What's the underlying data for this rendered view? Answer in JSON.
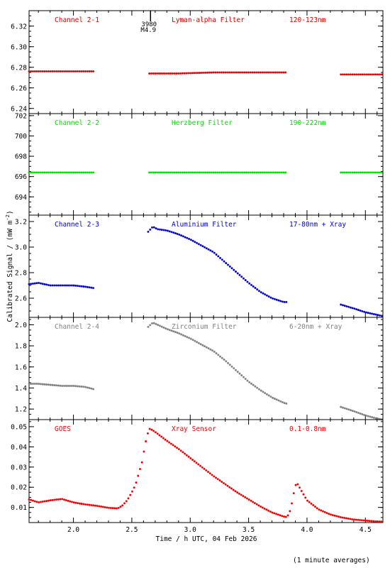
{
  "chart_data": {
    "type": "scatter",
    "xlabel": "Time / h UTC, 04 Feb 2026",
    "ylabel": "Calibrated Signal / (mW m",
    "ylabel_exp": "-2",
    "ylabel_end": ")",
    "footnote": "(1 minute averages)",
    "xlim": [
      1.62,
      4.65
    ],
    "xticks": [
      "2.0",
      "2.5",
      "3.0",
      "3.5",
      "4.0",
      "4.5"
    ],
    "flare": {
      "x": 2.66,
      "label_top": "3980",
      "label_bottom": "M4.9"
    },
    "panels": [
      {
        "labels": [
          "Channel 2-1",
          "Lyman-alpha Filter",
          "120-123nm"
        ],
        "color": "#dd0000",
        "ylim": [
          6.235,
          6.335
        ],
        "yticks": [
          "6.24",
          "6.26",
          "6.28",
          "6.30",
          "6.32"
        ],
        "segments": [
          {
            "x": [
              1.62,
              2.17
            ],
            "y": [
              6.276,
              6.276
            ]
          },
          {
            "x": [
              2.65,
              2.9,
              3.2,
              3.5,
              3.83
            ],
            "y": [
              6.274,
              6.274,
              6.275,
              6.275,
              6.275
            ]
          },
          {
            "x": [
              4.29,
              4.65
            ],
            "y": [
              6.273,
              6.273
            ]
          }
        ]
      },
      {
        "labels": [
          "Channel 2-2",
          "Herzberg Filter",
          "190-222nm"
        ],
        "color": "#00e000",
        "ylim": [
          692.2,
          702.2
        ],
        "yticks": [
          "694",
          "696",
          "698",
          "700",
          "702"
        ],
        "segments": [
          {
            "x": [
              1.62,
              2.17
            ],
            "y": [
              696.4,
              696.4
            ]
          },
          {
            "x": [
              2.65,
              3.83
            ],
            "y": [
              696.4,
              696.4
            ]
          },
          {
            "x": [
              4.29,
              4.65
            ],
            "y": [
              696.4,
              696.4
            ]
          }
        ]
      },
      {
        "labels": [
          "Channel 2-3",
          "Aluminium Filter",
          "17-80nm + Xray"
        ],
        "color": "#0000cc",
        "ylim": [
          2.45,
          3.25
        ],
        "yticks": [
          "2.6",
          "2.8",
          "3.0",
          "3.2"
        ],
        "segments": [
          {
            "x": [
              1.62,
              1.7,
              1.8,
              1.9,
              2.0,
              2.1,
              2.17
            ],
            "y": [
              2.71,
              2.72,
              2.7,
              2.7,
              2.7,
              2.69,
              2.68
            ]
          },
          {
            "x": [
              2.64,
              2.68,
              2.72,
              2.8,
              2.9,
              3.0,
              3.1,
              3.2,
              3.3,
              3.4,
              3.5,
              3.6,
              3.7,
              3.8,
              3.83
            ],
            "y": [
              3.12,
              3.16,
              3.14,
              3.13,
              3.1,
              3.06,
              3.01,
              2.96,
              2.88,
              2.8,
              2.72,
              2.65,
              2.6,
              2.57,
              2.57
            ]
          },
          {
            "x": [
              4.29,
              4.4,
              4.5,
              4.6,
              4.65
            ],
            "y": [
              2.55,
              2.52,
              2.49,
              2.47,
              2.46
            ]
          }
        ]
      },
      {
        "labels": [
          "Channel 2-4",
          "Zirconium Filter",
          "6-20nm + Xray"
        ],
        "color": "#808080",
        "ylim": [
          1.1,
          2.07
        ],
        "yticks": [
          "1.2",
          "1.4",
          "1.6",
          "1.8",
          "2.0"
        ],
        "segments": [
          {
            "x": [
              1.62,
              1.7,
              1.8,
              1.9,
              2.0,
              2.1,
              2.17
            ],
            "y": [
              1.44,
              1.44,
              1.43,
              1.42,
              1.42,
              1.41,
              1.39
            ]
          },
          {
            "x": [
              2.64,
              2.68,
              2.72,
              2.8,
              2.9,
              3.0,
              3.1,
              3.2,
              3.3,
              3.4,
              3.5,
              3.6,
              3.7,
              3.8,
              3.83
            ],
            "y": [
              1.98,
              2.02,
              2.0,
              1.96,
              1.92,
              1.87,
              1.81,
              1.75,
              1.66,
              1.56,
              1.46,
              1.38,
              1.31,
              1.26,
              1.25
            ]
          },
          {
            "x": [
              4.29,
              4.4,
              4.5,
              4.6,
              4.65
            ],
            "y": [
              1.22,
              1.18,
              1.14,
              1.11,
              1.1
            ]
          }
        ]
      },
      {
        "labels": [
          "GOES",
          "Xray Sensor",
          "0.1-0.8nm"
        ],
        "color": "#ee0000",
        "ylim": [
          0.0025,
          0.0535
        ],
        "yticks": [
          "0.01",
          "0.02",
          "0.03",
          "0.04",
          "0.05"
        ],
        "segments": [
          {
            "x": [
              1.62,
              1.7,
              1.8,
              1.9,
              2.0,
              2.1,
              2.2,
              2.3,
              2.38,
              2.42,
              2.46,
              2.5,
              2.53,
              2.56,
              2.59,
              2.61,
              2.63,
              2.65,
              2.68,
              2.72,
              2.8,
              2.9,
              3.0,
              3.1,
              3.2,
              3.3,
              3.4,
              3.5,
              3.6,
              3.7,
              3.8,
              3.83,
              3.86,
              3.88,
              3.9,
              3.92,
              3.95,
              4.0,
              4.1,
              4.2,
              4.3,
              4.4,
              4.5,
              4.6,
              4.65
            ],
            "y": [
              0.014,
              0.0125,
              0.0135,
              0.0142,
              0.0125,
              0.0115,
              0.0108,
              0.0098,
              0.0095,
              0.011,
              0.0135,
              0.0175,
              0.021,
              0.027,
              0.033,
              0.04,
              0.0455,
              0.049,
              0.0482,
              0.0465,
              0.043,
              0.039,
              0.0345,
              0.03,
              0.0255,
              0.0215,
              0.0175,
              0.014,
              0.0105,
              0.0075,
              0.0055,
              0.0052,
              0.009,
              0.015,
              0.021,
              0.0215,
              0.0185,
              0.0135,
              0.009,
              0.0065,
              0.005,
              0.004,
              0.0035,
              0.003,
              0.003
            ]
          }
        ]
      }
    ]
  }
}
